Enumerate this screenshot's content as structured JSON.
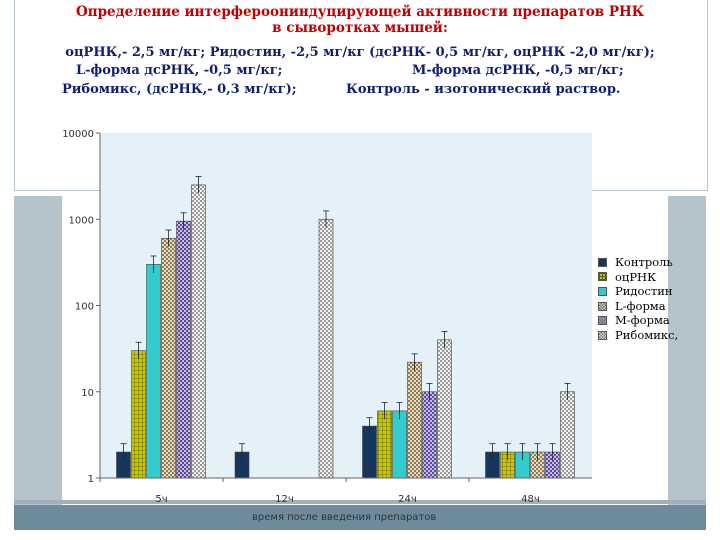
{
  "slide": {
    "title_line1": "Определение интерфероониндуцирующей активности препаратов РНК",
    "title_line2": "в сыворотках мышей:",
    "desc_line1": "оцРНК,- 2,5 мг/кг;     Ридостин, -2,5 мг/кг (дсРНК- 0,5 мг/кг, оцРНК -2,0 мг/кг);",
    "desc_line2_a": "L-форма дсРНК, -0,5 мг/кг;",
    "desc_line2_b": "М-форма дсРНК, -0,5 мг/кг;",
    "desc_line3_a": "Рибомикс, (дсРНК,- 0,3 мг/кг);",
    "desc_line3_b": "Контроль - изотонический раствор."
  },
  "chart_data": {
    "type": "bar",
    "yscale": "log",
    "ylim": [
      1,
      10000
    ],
    "ytick_labels": [
      "1",
      "10",
      "100",
      "1000",
      "10000"
    ],
    "xlabel": "время после введения препаратов",
    "categories": [
      "5ч",
      "12ч",
      "24ч",
      "48ч"
    ],
    "legend_position": "right",
    "series": [
      {
        "name": "Контроль",
        "color": "#17365d",
        "pattern": "solid",
        "values": [
          2,
          2,
          4,
          2
        ]
      },
      {
        "name": "оцРНК",
        "color": "#c8c800",
        "pattern": "grid",
        "values": [
          30,
          null,
          6,
          2
        ]
      },
      {
        "name": "Ридостин",
        "color": "#33cccc",
        "pattern": "solid",
        "values": [
          300,
          null,
          6,
          2
        ]
      },
      {
        "name": "L-форма",
        "color": "#d4c4a0",
        "pattern": "check",
        "values": [
          600,
          null,
          22,
          2
        ]
      },
      {
        "name": "М-форма",
        "color": "#9b8bc8",
        "pattern": "check",
        "values": [
          950,
          null,
          10,
          2
        ]
      },
      {
        "name": "Рибомикс,",
        "color": "#d8d8d8",
        "pattern": "check",
        "values": [
          2500,
          1000,
          40,
          10
        ]
      }
    ]
  },
  "colors": {
    "title": "#c00000",
    "subtitle": "#0d1f6e",
    "plot_area": "#e4f1f8",
    "frame_band": "#b5c3cc"
  }
}
